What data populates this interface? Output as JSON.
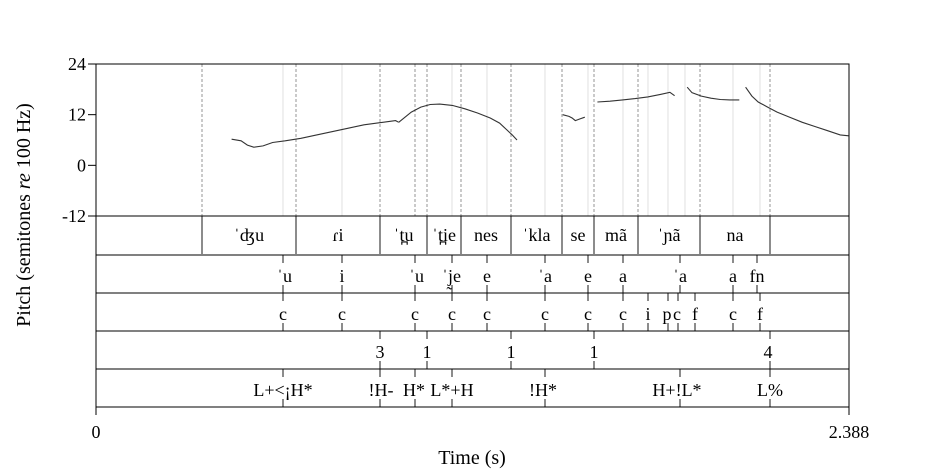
{
  "chart_data": {
    "type": "line",
    "xlabel": "Time (s)",
    "ylabel_parts": [
      "Pitch (semitones ",
      "re",
      " 100 Hz)"
    ],
    "x_range": [
      0,
      2.388
    ],
    "x_tick_labels": [
      "0",
      "2.388"
    ],
    "y_range": [
      -12,
      24
    ],
    "y_ticks": [
      24,
      12,
      0,
      -12
    ],
    "y_tick_labels": [
      "24",
      "12",
      "0",
      "-12"
    ],
    "pitch_segments": [
      [
        [
          0.43,
          6.2
        ],
        [
          0.46,
          5.8
        ],
        [
          0.48,
          4.8
        ],
        [
          0.5,
          4.3
        ],
        [
          0.53,
          4.6
        ],
        [
          0.56,
          5.4
        ],
        [
          0.6,
          5.8
        ],
        [
          0.65,
          6.4
        ],
        [
          0.7,
          7.2
        ],
        [
          0.75,
          8.0
        ],
        [
          0.8,
          8.8
        ],
        [
          0.85,
          9.6
        ],
        [
          0.9,
          10.1
        ],
        [
          0.93,
          10.4
        ],
        [
          0.95,
          10.6
        ],
        [
          0.96,
          10.2
        ]
      ],
      [
        [
          0.96,
          10.2
        ],
        [
          1.0,
          12.6
        ],
        [
          1.03,
          13.8
        ],
        [
          1.06,
          14.4
        ],
        [
          1.09,
          14.5
        ],
        [
          1.13,
          14.2
        ],
        [
          1.17,
          13.4
        ],
        [
          1.21,
          12.4
        ],
        [
          1.25,
          11.2
        ],
        [
          1.28,
          10.0
        ],
        [
          1.3,
          8.6
        ],
        [
          1.32,
          7.2
        ],
        [
          1.335,
          6.0
        ]
      ],
      [
        [
          1.48,
          12.0
        ],
        [
          1.5,
          11.6
        ],
        [
          1.51,
          11.2
        ],
        [
          1.52,
          10.6
        ],
        [
          1.535,
          11.0
        ],
        [
          1.55,
          11.4
        ]
      ],
      [
        [
          1.59,
          15.0
        ],
        [
          1.63,
          15.2
        ],
        [
          1.67,
          15.5
        ],
        [
          1.71,
          15.8
        ],
        [
          1.75,
          16.2
        ],
        [
          1.79,
          16.8
        ],
        [
          1.82,
          17.3
        ],
        [
          1.835,
          16.5
        ]
      ],
      [
        [
          1.875,
          18.5
        ],
        [
          1.89,
          17.2
        ],
        [
          1.92,
          16.4
        ],
        [
          1.95,
          15.9
        ],
        [
          1.98,
          15.6
        ],
        [
          2.01,
          15.5
        ],
        [
          2.04,
          15.5
        ]
      ],
      [
        [
          2.06,
          18.5
        ],
        [
          2.08,
          16.4
        ],
        [
          2.1,
          15.0
        ],
        [
          2.13,
          13.8
        ],
        [
          2.16,
          12.6
        ],
        [
          2.2,
          11.4
        ],
        [
          2.24,
          10.2
        ],
        [
          2.28,
          9.2
        ],
        [
          2.32,
          8.2
        ],
        [
          2.36,
          7.2
        ],
        [
          2.387,
          7.0
        ]
      ]
    ],
    "tiers": [
      {
        "labels": [
          "ˈʤu",
          "ɾi",
          "ˈt̪u",
          "ˈt̪ie",
          "nes",
          "ˈkla",
          "se",
          "mã",
          "ˈɲã",
          "na"
        ]
      },
      {
        "labels": [
          "ˈu",
          "i",
          "ˈu",
          "ˈj̰e",
          "e",
          "ˈa",
          "e",
          "a",
          "ˈa",
          "a",
          "fn"
        ]
      },
      {
        "labels": [
          "c",
          "c",
          "c",
          "c",
          "c",
          "c",
          "c",
          "c",
          "i",
          "p",
          "c",
          "f",
          "c",
          "f"
        ]
      },
      {
        "labels": [
          "3",
          "1",
          "1",
          "1",
          "4"
        ]
      },
      {
        "labels": [
          "L+<¡H*",
          "!H-",
          "H*",
          "L*+H",
          "!H*",
          "H+!L*",
          "L%"
        ]
      }
    ]
  }
}
